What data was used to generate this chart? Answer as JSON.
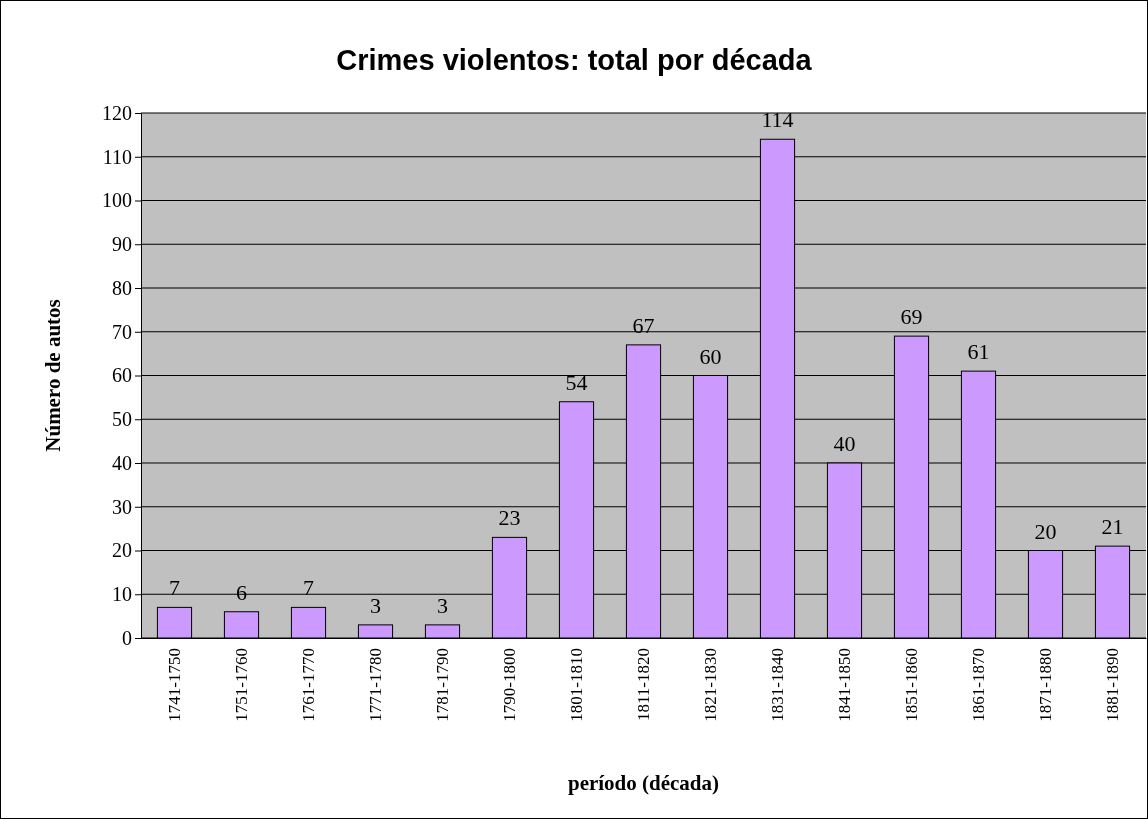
{
  "chart_data": {
    "type": "bar",
    "title": "Crimes violentos: total por década",
    "xlabel": "período (década)",
    "ylabel": "Número de autos",
    "categories": [
      "1741-1750",
      "1751-1760",
      "1761-1770",
      "1771-1780",
      "1781-1790",
      "1790-1800",
      "1801-1810",
      "1811-1820",
      "1821-1830",
      "1831-1840",
      "1841-1850",
      "1851-1860",
      "1861-1870",
      "1871-1880",
      "1881-1890"
    ],
    "values": [
      7,
      6,
      7,
      3,
      3,
      23,
      54,
      67,
      60,
      114,
      40,
      69,
      61,
      20,
      21
    ],
    "color": "#cc99ff",
    "ylim": [
      0,
      120
    ],
    "yticks": [
      0,
      10,
      20,
      30,
      40,
      50,
      60,
      70,
      80,
      90,
      100,
      110,
      120
    ],
    "grid": "y",
    "data_labels": true
  }
}
